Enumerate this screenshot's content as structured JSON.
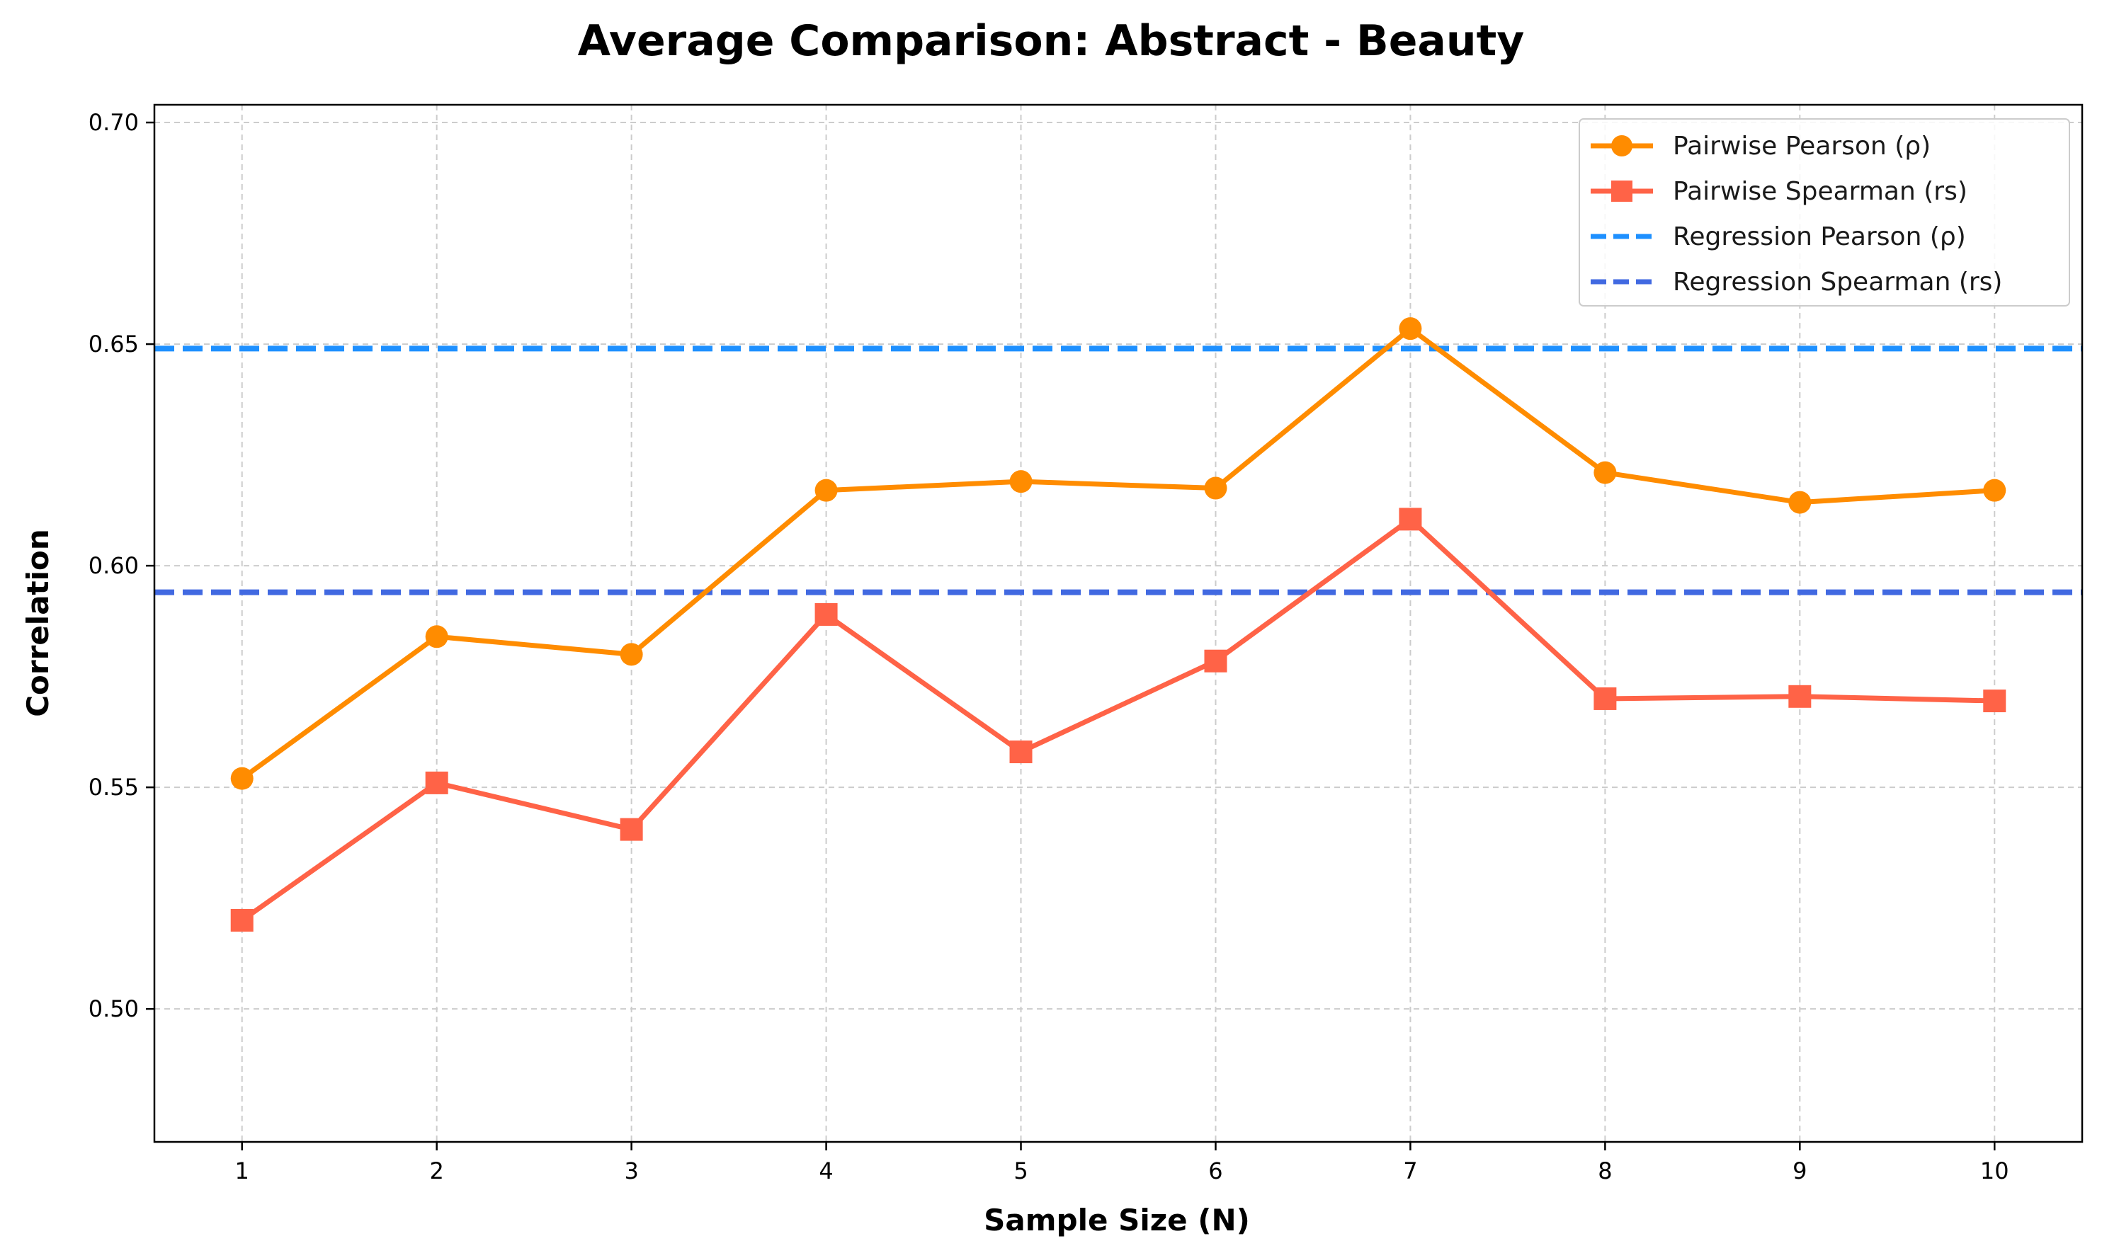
{
  "chart_data": {
    "type": "line",
    "title": "Average Comparison: Abstract - Beauty",
    "xlabel": "Sample Size (N)",
    "ylabel": "Correlation",
    "x": [
      1,
      2,
      3,
      4,
      5,
      6,
      7,
      8,
      9,
      10
    ],
    "x_tick_labels": [
      "1",
      "2",
      "3",
      "4",
      "5",
      "6",
      "7",
      "8",
      "9",
      "10"
    ],
    "xlim": [
      0.55,
      10.45
    ],
    "ylim": [
      0.47,
      0.704
    ],
    "y_ticks": [
      0.5,
      0.55,
      0.6,
      0.65,
      0.7
    ],
    "y_tick_labels": [
      "0.50",
      "0.55",
      "0.60",
      "0.65",
      "0.70"
    ],
    "grid": true,
    "legend_position": "top-right",
    "series": [
      {
        "name": "Pairwise Pearson (ρ)",
        "values": [
          0.552,
          0.584,
          0.58,
          0.617,
          0.619,
          0.6175,
          0.6535,
          0.621,
          0.6143,
          0.617
        ],
        "color": "#ff8c00",
        "marker": "circle",
        "style": "solid"
      },
      {
        "name": "Pairwise Spearman (rs)",
        "values": [
          0.52,
          0.551,
          0.5405,
          0.589,
          0.558,
          0.5785,
          0.6105,
          0.57,
          0.5705,
          0.5695
        ],
        "color": "#ff6347",
        "marker": "square",
        "style": "solid"
      }
    ],
    "reference_lines": [
      {
        "name": "Regression Pearson (ρ)",
        "value": 0.649,
        "color": "#1e90ff",
        "style": "dashed"
      },
      {
        "name": "Regression Spearman (rs)",
        "value": 0.594,
        "color": "#4169e1",
        "style": "dashed"
      }
    ]
  }
}
